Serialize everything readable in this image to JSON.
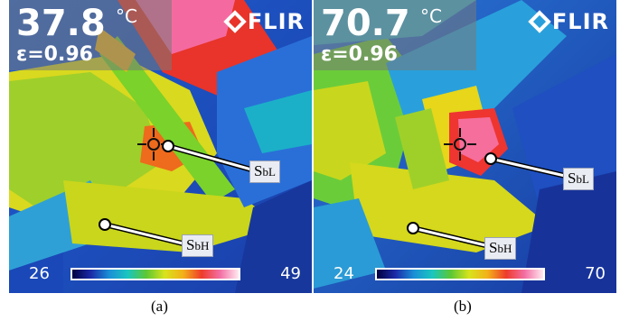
{
  "panels": [
    {
      "temperature": "37.8",
      "unit": "°C",
      "emissivity": "ε=0.96",
      "logo": "FLIR",
      "scale_min": "26",
      "scale_max": "49",
      "label_low": {
        "main": "S",
        "sub": "bL"
      },
      "label_high": {
        "main": "S",
        "sub": "bH"
      },
      "caption": "(a)"
    },
    {
      "temperature": "70.7",
      "unit": "°C",
      "emissivity": "ε=0.96",
      "logo": "FLIR",
      "scale_min": "24",
      "scale_max": "70",
      "label_low": {
        "main": "S",
        "sub": "bL"
      },
      "label_high": {
        "main": "S",
        "sub": "bH"
      },
      "caption": "(b)"
    }
  ]
}
